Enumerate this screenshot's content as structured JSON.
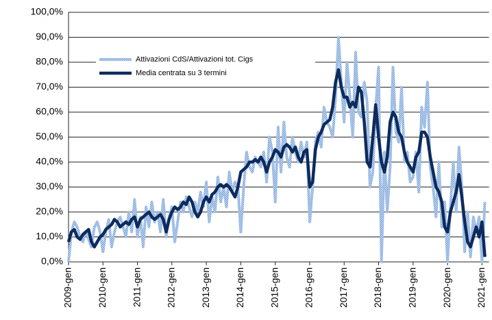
{
  "chart_data": {
    "type": "line",
    "categories": [
      "2009-gen",
      null,
      null,
      null,
      null,
      null,
      null,
      null,
      null,
      null,
      null,
      null,
      "2010-gen",
      null,
      null,
      null,
      null,
      null,
      null,
      null,
      null,
      null,
      null,
      null,
      "2011-gen",
      null,
      null,
      null,
      null,
      null,
      null,
      null,
      null,
      null,
      null,
      null,
      "2012-gen",
      null,
      null,
      null,
      null,
      null,
      null,
      null,
      null,
      null,
      null,
      null,
      "2013-gen",
      null,
      null,
      null,
      null,
      null,
      null,
      null,
      null,
      null,
      null,
      null,
      "2014-gen",
      null,
      null,
      null,
      null,
      null,
      null,
      null,
      null,
      null,
      null,
      null,
      "2015-gen",
      null,
      null,
      null,
      null,
      null,
      null,
      null,
      null,
      null,
      null,
      null,
      "2016-gen",
      null,
      null,
      null,
      null,
      null,
      null,
      null,
      null,
      null,
      null,
      null,
      "2017-gen",
      null,
      null,
      null,
      null,
      null,
      null,
      null,
      null,
      null,
      null,
      null,
      "2018-gen",
      null,
      null,
      null,
      null,
      null,
      null,
      null,
      null,
      null,
      null,
      null,
      "2019-gen",
      null,
      null,
      null,
      null,
      null,
      null,
      null,
      null,
      null,
      null,
      null,
      "2020-gen",
      null,
      null,
      null,
      null,
      null,
      null,
      null,
      null,
      null,
      null,
      null,
      "2021-gen",
      null
    ],
    "series": [
      {
        "name": "Attivazioni CdS/Attivazioni tot. Cigs",
        "color": "#8fb4e0",
        "style": "hatched",
        "values": [
          0,
          12,
          16,
          14,
          10,
          8,
          12,
          9,
          6,
          14,
          16,
          12,
          4,
          12,
          17,
          6,
          12,
          16,
          18,
          14,
          10,
          20,
          12,
          25,
          10,
          18,
          6,
          22,
          14,
          24,
          16,
          20,
          12,
          25,
          10,
          18,
          22,
          8,
          16,
          24,
          20,
          26,
          22,
          18,
          24,
          20,
          28,
          22,
          32,
          16,
          26,
          20,
          34,
          24,
          30,
          22,
          36,
          28,
          32,
          30,
          12,
          30,
          44,
          38,
          36,
          42,
          40,
          38,
          44,
          32,
          50,
          44,
          24,
          54,
          36,
          56,
          42,
          38,
          50,
          44,
          40,
          48,
          42,
          48,
          16,
          30,
          48,
          52,
          46,
          62,
          56,
          54,
          50,
          66,
          90,
          72,
          56,
          80,
          66,
          50,
          84,
          60,
          58,
          72,
          64,
          30,
          36,
          62,
          78,
          0,
          44,
          20,
          38,
          78,
          52,
          48,
          70,
          40,
          44,
          32,
          34,
          44,
          28,
          62,
          54,
          72,
          38,
          30,
          18,
          40,
          14,
          24,
          0,
          22,
          40,
          20,
          46,
          30,
          4,
          20,
          2,
          18,
          12,
          18,
          0,
          24
        ]
      },
      {
        "name": "Media centrata su 3 termini",
        "color": "#0d2b5e",
        "style": "solid",
        "values": [
          8,
          12,
          13,
          10,
          9,
          11,
          12,
          13,
          8,
          6,
          8,
          10,
          11,
          13,
          14,
          15,
          17,
          16,
          14,
          15,
          16,
          15,
          17,
          18,
          14,
          17,
          18,
          19,
          20,
          18,
          17,
          18,
          19,
          17,
          12,
          17,
          20,
          22,
          21,
          22,
          24,
          23,
          26,
          24,
          20,
          18,
          20,
          24,
          26,
          24,
          27,
          28,
          30,
          31,
          30,
          31,
          30,
          28,
          26,
          30,
          36,
          37,
          38,
          40,
          40,
          41,
          40,
          42,
          40,
          36,
          40,
          42,
          45,
          44,
          42,
          46,
          47,
          46,
          44,
          46,
          42,
          40,
          44,
          45,
          30,
          32,
          45,
          50,
          52,
          55,
          56,
          57,
          62,
          72,
          77,
          70,
          66,
          66,
          62,
          64,
          62,
          70,
          68,
          56,
          40,
          38,
          50,
          63,
          50,
          40,
          36,
          42,
          56,
          60,
          58,
          52,
          50,
          44,
          40,
          38,
          36,
          42,
          44,
          52,
          52,
          50,
          42,
          36,
          30,
          28,
          24,
          14,
          12,
          20,
          24,
          28,
          35,
          26,
          16,
          8,
          6,
          10,
          14,
          10,
          16,
          2
        ]
      }
    ],
    "ylim": [
      0,
      100
    ],
    "yticks": [
      {
        "value": 0,
        "label": "0,0%"
      },
      {
        "value": 10,
        "label": "10,0%"
      },
      {
        "value": 20,
        "label": "20,0%"
      },
      {
        "value": 30,
        "label": "30,0%"
      },
      {
        "value": 40,
        "label": "40,0%"
      },
      {
        "value": 50,
        "label": "50,0%"
      },
      {
        "value": 60,
        "label": "60,0%"
      },
      {
        "value": 70,
        "label": "70,0%"
      },
      {
        "value": 80,
        "label": "80,0%"
      },
      {
        "value": 90,
        "label": "90,0%"
      },
      {
        "value": 100,
        "label": "100,0%"
      }
    ],
    "grid": true,
    "legend": "top-left"
  }
}
